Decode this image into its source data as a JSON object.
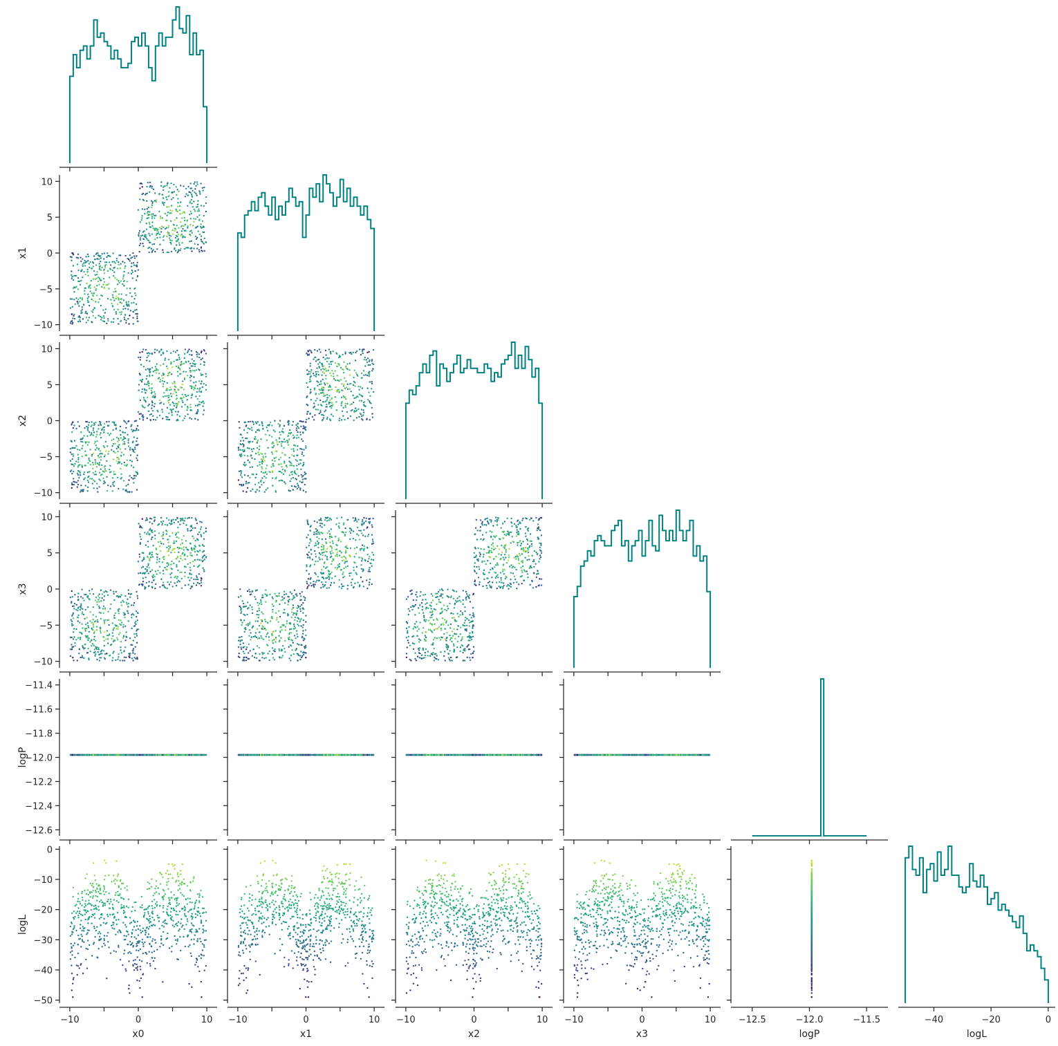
{
  "chart_data": {
    "type": "corner",
    "variables": [
      "x0",
      "x1",
      "x2",
      "x3",
      "logP",
      "logL"
    ],
    "axis_labels": {
      "x": [
        "x0",
        "x1",
        "x2",
        "x3",
        "logP",
        "logL"
      ],
      "y": [
        "",
        "x1",
        "x2",
        "x3",
        "logP",
        "logL"
      ]
    },
    "ranges": {
      "x0": [
        -10.9,
        10.9
      ],
      "x1": [
        -10.9,
        10.9
      ],
      "x2": [
        -10.9,
        10.9
      ],
      "x3": [
        -10.9,
        10.9
      ],
      "logP": [
        -12.65,
        -11.35
      ],
      "logL": [
        -51,
        1
      ]
    },
    "ticks": {
      "x0": [
        -10,
        -5,
        0,
        5,
        10
      ],
      "x1": [
        -10,
        -5,
        0,
        5,
        10
      ],
      "x2": [
        -10,
        -5,
        0,
        5,
        10
      ],
      "x3": [
        -10,
        -5,
        0,
        5,
        10
      ],
      "logP": [
        -12.6,
        -12.4,
        -12.2,
        -12.0,
        -11.8,
        -11.6,
        -11.4
      ],
      "logL": [
        -50,
        -40,
        -30,
        -20,
        -10,
        0
      ]
    },
    "tick_labels": {
      "x": {
        "x0": [
          "−10",
          "",
          "0",
          "",
          "10"
        ],
        "x1": [
          "−10",
          "",
          "0",
          "",
          "10"
        ],
        "x2": [
          "−10",
          "",
          "0",
          "",
          "10"
        ],
        "x3": [
          "−10",
          "",
          "0",
          "",
          "10"
        ],
        "logP": [
          "−12.5",
          "−12.0",
          "−11.5"
        ],
        "logL": [
          "−40",
          "−20",
          "0"
        ]
      },
      "y": {
        "x1": [
          "−10",
          "−5",
          "0",
          "5",
          "10"
        ],
        "x2": [
          "−10",
          "−5",
          "0",
          "5",
          "10"
        ],
        "x3": [
          "−10",
          "−5",
          "0",
          "5",
          "10"
        ],
        "logP": [
          "−12.6",
          "−12.4",
          "−12.2",
          "−12.0",
          "−11.8",
          "−11.6",
          "−11.4"
        ],
        "logL": [
          "−50",
          "−40",
          "−30",
          "−20",
          "−10",
          "0"
        ]
      }
    },
    "x_tick_values": {
      "x0": [
        -10,
        -5,
        0,
        5,
        10
      ],
      "x1": [
        -10,
        -5,
        0,
        5,
        10
      ],
      "x2": [
        -10,
        -5,
        0,
        5,
        10
      ],
      "x3": [
        -10,
        -5,
        0,
        5,
        10
      ],
      "logP": [
        -12.5,
        -12.0,
        -11.5
      ],
      "logL": [
        -40,
        -20,
        0
      ]
    },
    "histograms": {
      "x0": {
        "range": [
          -10,
          10
        ],
        "counts": [
          20,
          25,
          22,
          26,
          27,
          24,
          27,
          33,
          29,
          30,
          28,
          27,
          24,
          26,
          24,
          22,
          22,
          23,
          28,
          29,
          27,
          30,
          27,
          22,
          19,
          27,
          30,
          27,
          29,
          29,
          33,
          36,
          31,
          30,
          34,
          25,
          30,
          25,
          26,
          13
        ]
      },
      "x1": {
        "range": [
          -10,
          10
        ],
        "counts": [
          22,
          21,
          26,
          27,
          29,
          27,
          30,
          31,
          28,
          26,
          30,
          25,
          28,
          26,
          29,
          32,
          30,
          28,
          29,
          21,
          26,
          32,
          30,
          33,
          29,
          35,
          33,
          31,
          28,
          30,
          34,
          29,
          32,
          28,
          30,
          28,
          26,
          28,
          25,
          23
        ]
      },
      "x2": {
        "range": [
          -10,
          10
        ],
        "counts": [
          22,
          25,
          24,
          26,
          29,
          31,
          29,
          33,
          34,
          26,
          31,
          30,
          27,
          29,
          31,
          33,
          29,
          30,
          32,
          30,
          30,
          29,
          29,
          31,
          30,
          27,
          29,
          28,
          31,
          32,
          33,
          36,
          30,
          33,
          30,
          35,
          32,
          28,
          30,
          22
        ]
      },
      "x3": {
        "range": [
          -10,
          10
        ],
        "counts": [
          14,
          16,
          20,
          21,
          23,
          22,
          25,
          26,
          25,
          24,
          24,
          27,
          28,
          29,
          24,
          25,
          21,
          24,
          25,
          27,
          22,
          25,
          29,
          24,
          23,
          30,
          27,
          25,
          27,
          25,
          31,
          27,
          25,
          27,
          29,
          22,
          24,
          21,
          22,
          15
        ]
      },
      "logP": {
        "range": [
          -12.5,
          -11.5
        ],
        "counts": [
          0,
          0,
          0,
          0,
          0,
          0,
          0,
          0,
          0,
          0,
          0,
          0,
          0,
          0,
          0,
          0,
          0,
          0,
          0,
          0,
          0,
          0,
          0,
          0,
          1000,
          0,
          0,
          0,
          0,
          0,
          0,
          0,
          0,
          0,
          0,
          0,
          0,
          0,
          0,
          0
        ]
      },
      "logL": {
        "range": [
          -50,
          0
        ],
        "counts": [
          25,
          27,
          23,
          22,
          25,
          19,
          23,
          24,
          21,
          26,
          22,
          23,
          27,
          22,
          22,
          20,
          19,
          20,
          24,
          21,
          20,
          22,
          20,
          17,
          18,
          19,
          16,
          17,
          16,
          15,
          14,
          13,
          15,
          12,
          9,
          10,
          9,
          8,
          6,
          4
        ]
      }
    },
    "scatter_points_per_cluster": 400,
    "clusters": [
      {
        "center": [
          -5,
          -5,
          -5,
          -5
        ],
        "radius": 5
      },
      {
        "center": [
          5,
          5,
          5,
          5
        ],
        "radius": 5
      }
    ],
    "constant_logP": -11.98,
    "logL_peak_locations": [
      -5,
      5
    ],
    "colormap": "viridis",
    "color_by": "logL",
    "colors": {
      "histogram": "#008080",
      "axis": "#262626",
      "background": "#ffffff"
    },
    "grid": false,
    "legend": "none"
  }
}
